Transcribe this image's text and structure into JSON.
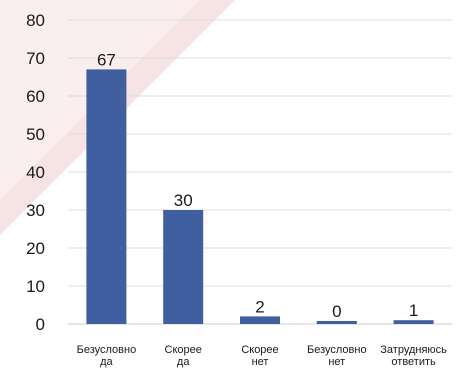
{
  "chart_data": {
    "type": "bar",
    "categories": [
      [
        "Безусловно",
        "да"
      ],
      [
        "Скорее",
        "да"
      ],
      [
        "Скорее",
        "нет"
      ],
      [
        "Безусловно",
        "нет"
      ],
      [
        "Затрудняюсь",
        "ответить"
      ]
    ],
    "values": [
      67,
      30,
      2,
      0,
      1
    ],
    "data_labels": [
      "67",
      "30",
      "2",
      "0",
      "1"
    ],
    "ylim": [
      0,
      80
    ],
    "y_ticks": [
      "0",
      "10",
      "20",
      "30",
      "40",
      "50",
      "60",
      "70",
      "80"
    ],
    "grid": true,
    "legend": "none",
    "colors": {
      "bar": "#3f5fa0",
      "decor": "#f6dede"
    }
  }
}
